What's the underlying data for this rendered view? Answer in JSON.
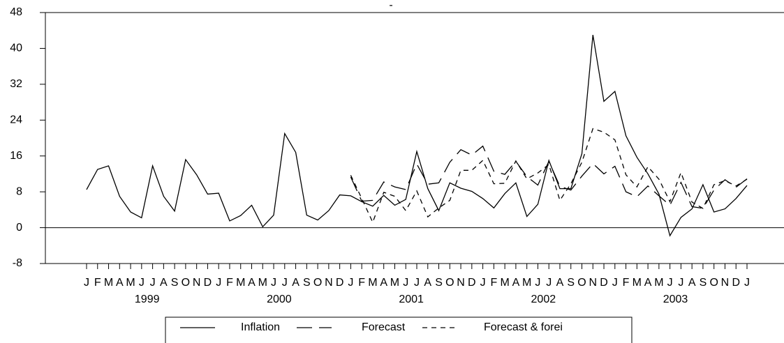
{
  "chart_data": {
    "type": "line",
    "title": "-",
    "categories": [
      "J",
      "F",
      "M",
      "A",
      "M",
      "J",
      "J",
      "A",
      "S",
      "O",
      "N",
      "D",
      "J",
      "F",
      "M",
      "A",
      "M",
      "J",
      "J",
      "A",
      "S",
      "O",
      "N",
      "D",
      "J",
      "F",
      "M",
      "A",
      "M",
      "J",
      "J",
      "A",
      "S",
      "O",
      "N",
      "D",
      "J",
      "F",
      "M",
      "A",
      "M",
      "J",
      "J",
      "A",
      "S",
      "O",
      "N",
      "D",
      "J",
      "F",
      "M",
      "A",
      "M",
      "J",
      "J",
      "A",
      "S",
      "O",
      "N",
      "D",
      "J"
    ],
    "years": [
      "1999",
      "2000",
      "2001",
      "2002",
      "2003"
    ],
    "series": [
      {
        "name": "Inflation",
        "color": "#000000",
        "dash": "solid",
        "values": [
          8.5,
          13,
          13.8,
          7,
          3.5,
          2.2,
          13.8,
          7,
          3.7,
          15.2,
          11.8,
          7.5,
          7.7,
          1.5,
          2.7,
          5,
          0.2,
          2.8,
          21,
          16.8,
          2.8,
          1.7,
          3.8,
          7.3,
          7.1,
          5.8,
          4.8,
          7.2,
          5,
          6.3,
          17,
          8.7,
          3.8,
          10,
          8.8,
          8.1,
          6.5,
          4.4,
          7.6,
          10,
          2.5,
          5.2,
          15,
          8.7,
          8.7,
          16.5,
          43,
          28.2,
          30.4,
          20.5,
          15.7,
          12,
          7.5,
          -1.8,
          2.3,
          4.2,
          9.6,
          3.5,
          4.2,
          6.5,
          9.4
        ]
      },
      {
        "name": "Forecast",
        "color": "#000000",
        "dash": "long",
        "values": [
          null,
          null,
          null,
          null,
          null,
          null,
          null,
          null,
          null,
          null,
          null,
          null,
          null,
          null,
          null,
          null,
          null,
          null,
          null,
          null,
          null,
          null,
          null,
          null,
          11.3,
          5.9,
          6.1,
          10.2,
          9.1,
          8.5,
          14.2,
          9.7,
          10,
          14.6,
          17.4,
          16.2,
          18.2,
          12.6,
          11.9,
          14.8,
          11.4,
          9.5,
          14.8,
          9.2,
          8.4,
          11.5,
          14.3,
          12,
          13.7,
          8,
          6.9,
          9.3,
          7.1,
          5,
          10.1,
          4.7,
          4.3,
          8.4,
          10.7,
          9,
          10.9
        ]
      },
      {
        "name": "Forecast & forei",
        "color": "#000000",
        "dash": "short",
        "values": [
          null,
          null,
          null,
          null,
          null,
          null,
          null,
          null,
          null,
          null,
          null,
          null,
          null,
          null,
          null,
          null,
          null,
          null,
          null,
          null,
          null,
          null,
          null,
          null,
          11.7,
          6.5,
          1.2,
          7.9,
          7,
          3.8,
          8.2,
          2.4,
          4.4,
          6.1,
          12.8,
          12.8,
          15,
          9.8,
          9.9,
          14.9,
          10.9,
          12.2,
          14.1,
          6.1,
          9.8,
          14.6,
          22.1,
          21.3,
          19.6,
          11.8,
          9.1,
          13.6,
          10.8,
          5.8,
          12.3,
          5.7,
          4.3,
          9.6,
          10.5,
          9.3,
          10.8
        ]
      }
    ],
    "ylim": [
      -8,
      48
    ],
    "yticks": [
      -8,
      0,
      8,
      16,
      24,
      32,
      40,
      48
    ],
    "grid": false
  }
}
